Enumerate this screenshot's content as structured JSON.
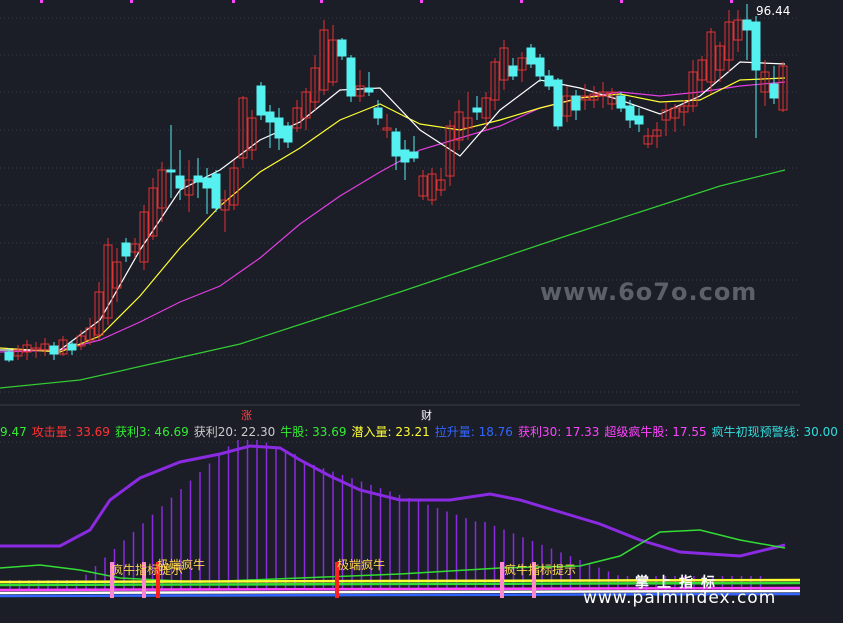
{
  "price_panel": {
    "high_label": "96.44",
    "ma_colors": {
      "ma5": "#ffffff",
      "ma10": "#ffff33",
      "ma20": "#e23ee2",
      "ma60": "#33cc33"
    },
    "up_color": "#e03333",
    "down_color": "#55f0f0"
  },
  "markers": {
    "zhang": "涨",
    "cai": "财"
  },
  "legend": [
    {
      "label": "9.47",
      "color": "#33ee33"
    },
    {
      "label": "攻击量: 33.69",
      "color": "#ff3333"
    },
    {
      "label": "获利3: 46.69",
      "color": "#33ee33"
    },
    {
      "label": "获利20: 22.30",
      "color": "#cccccc"
    },
    {
      "label": "牛股: 33.69",
      "color": "#33ee33"
    },
    {
      "label": "潜入量: 23.21",
      "color": "#ffff33"
    },
    {
      "label": "拉升量: 18.76",
      "color": "#3366ff"
    },
    {
      "label": "获利30: 17.33",
      "color": "#ff44ff"
    },
    {
      "label": "超级疯牛股: 17.55",
      "color": "#ff44ff"
    },
    {
      "label": "疯牛初现预警线: 30.00",
      "color": "#33dddd"
    }
  ],
  "tags": {
    "t1": "疯牛指标提示",
    "t2": "极端疯牛",
    "t3": "极端疯牛",
    "t4": "疯牛指标提示"
  },
  "watermarks": {
    "site1": "www.6o7o.com",
    "site2": "www.palmindex.com",
    "brand": "掌上指标"
  }
}
